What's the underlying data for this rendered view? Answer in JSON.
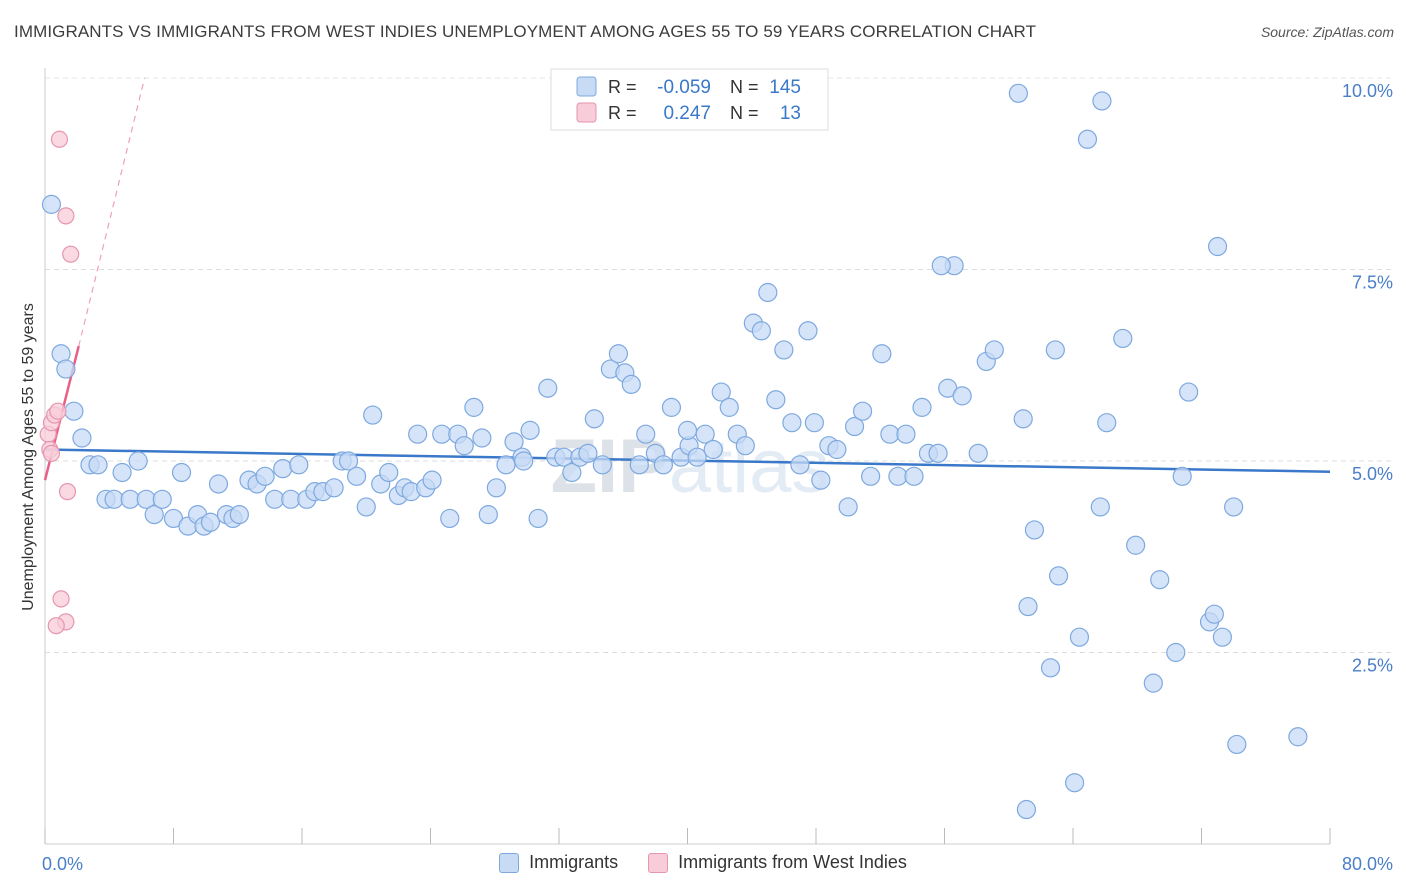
{
  "title": "IMMIGRANTS VS IMMIGRANTS FROM WEST INDIES UNEMPLOYMENT AMONG AGES 55 TO 59 YEARS CORRELATION CHART",
  "source": "Source: ZipAtlas.com",
  "watermark": "ZIPatlas",
  "colors": {
    "blue": "#3a78c9",
    "blue_fill": "#c7dbf5",
    "blue_stroke": "#7ea9df",
    "pink": "#e86088",
    "pink_fill": "#f8ccd9",
    "pink_stroke": "#e596ae",
    "axis_text": "#4a7fc8",
    "grid": "#dddddd"
  },
  "legend": {
    "blue": {
      "r_label": "R =",
      "r_value": "-0.059",
      "n_label": "N =",
      "n_value": "145"
    },
    "pink": {
      "r_label": "R =",
      "r_value": "0.247",
      "n_label": "N =",
      "n_value": "13"
    }
  },
  "bottom_legend": {
    "blue": "Immigrants",
    "pink": "Immigrants from West Indies"
  },
  "chart_data": {
    "type": "scatter",
    "title": "IMMIGRANTS VS IMMIGRANTS FROM WEST INDIES UNEMPLOYMENT AMONG AGES 55 TO 59 YEARS CORRELATION CHART",
    "xlabel": "",
    "ylabel": "Unemployment Among Ages 55 to 59 years",
    "xlim": [
      0,
      80
    ],
    "ylim": [
      0,
      10
    ],
    "x_tick_labels": [
      {
        "value": 0,
        "label": "0.0%"
      },
      {
        "value": 80,
        "label": "80.0%"
      }
    ],
    "y_tick_labels": [
      {
        "value": 2.5,
        "label": "2.5%"
      },
      {
        "value": 5.0,
        "label": "5.0%"
      },
      {
        "value": 7.5,
        "label": "7.5%"
      },
      {
        "value": 10.0,
        "label": "10.0%"
      }
    ],
    "grid": true,
    "legend_position": "top-center",
    "series": [
      {
        "name": "Immigrants",
        "color": "#3a78c9",
        "trend": {
          "x": [
            0,
            80
          ],
          "y": [
            5.15,
            4.86
          ]
        },
        "points": [
          [
            0.4,
            8.35
          ],
          [
            1.0,
            6.4
          ],
          [
            1.3,
            6.2
          ],
          [
            1.8,
            5.65
          ],
          [
            2.3,
            5.3
          ],
          [
            2.8,
            4.95
          ],
          [
            3.3,
            4.95
          ],
          [
            3.8,
            4.5
          ],
          [
            4.3,
            4.5
          ],
          [
            4.8,
            4.85
          ],
          [
            5.3,
            4.5
          ],
          [
            5.8,
            5.0
          ],
          [
            6.3,
            4.5
          ],
          [
            6.8,
            4.3
          ],
          [
            7.3,
            4.5
          ],
          [
            8.0,
            4.25
          ],
          [
            8.5,
            4.85
          ],
          [
            8.9,
            4.15
          ],
          [
            9.5,
            4.3
          ],
          [
            9.9,
            4.15
          ],
          [
            10.3,
            4.2
          ],
          [
            10.8,
            4.7
          ],
          [
            11.3,
            4.3
          ],
          [
            11.7,
            4.25
          ],
          [
            12.1,
            4.3
          ],
          [
            12.7,
            4.75
          ],
          [
            13.2,
            4.7
          ],
          [
            13.7,
            4.8
          ],
          [
            14.3,
            4.5
          ],
          [
            14.8,
            4.9
          ],
          [
            15.3,
            4.5
          ],
          [
            15.8,
            4.95
          ],
          [
            16.3,
            4.5
          ],
          [
            16.8,
            4.6
          ],
          [
            17.3,
            4.6
          ],
          [
            18.0,
            4.65
          ],
          [
            18.5,
            5.0
          ],
          [
            18.9,
            5.0
          ],
          [
            19.4,
            4.8
          ],
          [
            20.0,
            4.4
          ],
          [
            20.4,
            5.6
          ],
          [
            20.9,
            4.7
          ],
          [
            21.4,
            4.85
          ],
          [
            22.0,
            4.55
          ],
          [
            22.4,
            4.65
          ],
          [
            22.8,
            4.6
          ],
          [
            23.2,
            5.35
          ],
          [
            23.7,
            4.65
          ],
          [
            24.1,
            4.75
          ],
          [
            24.7,
            5.35
          ],
          [
            25.2,
            4.25
          ],
          [
            25.7,
            5.35
          ],
          [
            26.1,
            5.2
          ],
          [
            26.7,
            5.7
          ],
          [
            27.2,
            5.3
          ],
          [
            27.6,
            4.3
          ],
          [
            28.1,
            4.65
          ],
          [
            28.7,
            4.95
          ],
          [
            29.2,
            5.25
          ],
          [
            29.7,
            5.05
          ],
          [
            30.2,
            5.4
          ],
          [
            30.7,
            4.25
          ],
          [
            31.3,
            5.95
          ],
          [
            31.8,
            5.05
          ],
          [
            32.3,
            5.05
          ],
          [
            32.8,
            4.85
          ],
          [
            33.3,
            5.05
          ],
          [
            33.8,
            5.1
          ],
          [
            34.2,
            5.55
          ],
          [
            34.7,
            4.95
          ],
          [
            35.2,
            6.2
          ],
          [
            35.7,
            6.4
          ],
          [
            36.1,
            6.15
          ],
          [
            36.5,
            6.0
          ],
          [
            37.0,
            4.95
          ],
          [
            37.4,
            5.35
          ],
          [
            38.0,
            5.1
          ],
          [
            38.5,
            4.95
          ],
          [
            39.0,
            5.7
          ],
          [
            39.6,
            5.05
          ],
          [
            40.1,
            5.2
          ],
          [
            40.6,
            5.05
          ],
          [
            41.1,
            5.35
          ],
          [
            41.6,
            5.15
          ],
          [
            42.1,
            5.9
          ],
          [
            42.6,
            5.7
          ],
          [
            43.1,
            5.35
          ],
          [
            43.6,
            5.2
          ],
          [
            44.1,
            6.8
          ],
          [
            44.6,
            6.7
          ],
          [
            45.0,
            7.2
          ],
          [
            45.5,
            5.8
          ],
          [
            46.0,
            6.45
          ],
          [
            46.5,
            5.5
          ],
          [
            47.0,
            4.95
          ],
          [
            47.5,
            6.7
          ],
          [
            47.9,
            5.5
          ],
          [
            48.3,
            4.75
          ],
          [
            48.8,
            5.2
          ],
          [
            49.3,
            5.15
          ],
          [
            50.0,
            4.4
          ],
          [
            50.4,
            5.45
          ],
          [
            50.9,
            5.65
          ],
          [
            51.4,
            4.8
          ],
          [
            52.1,
            6.4
          ],
          [
            52.6,
            5.35
          ],
          [
            53.1,
            4.8
          ],
          [
            53.6,
            5.35
          ],
          [
            54.1,
            4.8
          ],
          [
            54.6,
            5.7
          ],
          [
            55.0,
            5.1
          ],
          [
            55.6,
            5.1
          ],
          [
            56.2,
            5.95
          ],
          [
            56.6,
            7.55
          ],
          [
            57.1,
            5.85
          ],
          [
            58.1,
            5.1
          ],
          [
            58.6,
            6.3
          ],
          [
            59.1,
            6.45
          ],
          [
            60.6,
            9.8
          ],
          [
            60.9,
            5.55
          ],
          [
            61.1,
            0.45
          ],
          [
            61.2,
            3.1
          ],
          [
            61.6,
            4.1
          ],
          [
            62.6,
            2.3
          ],
          [
            62.9,
            6.45
          ],
          [
            63.1,
            3.5
          ],
          [
            64.4,
            2.7
          ],
          [
            64.1,
            0.8
          ],
          [
            64.9,
            9.2
          ],
          [
            65.8,
            9.7
          ],
          [
            65.7,
            4.4
          ],
          [
            66.1,
            5.5
          ],
          [
            67.1,
            6.6
          ],
          [
            67.9,
            3.9
          ],
          [
            69.0,
            2.1
          ],
          [
            69.4,
            3.45
          ],
          [
            70.4,
            2.5
          ],
          [
            70.8,
            4.8
          ],
          [
            71.2,
            5.9
          ],
          [
            72.5,
            2.9
          ],
          [
            72.8,
            3.0
          ],
          [
            73.0,
            7.8
          ],
          [
            73.3,
            2.7
          ],
          [
            74.0,
            4.4
          ],
          [
            74.2,
            1.3
          ],
          [
            78.0,
            1.4
          ],
          [
            55.8,
            7.55
          ],
          [
            40.0,
            5.4
          ],
          [
            29.8,
            5.0
          ]
        ]
      },
      {
        "name": "Immigrants from West Indies",
        "color": "#e86088",
        "trend": {
          "x": [
            0,
            2.1
          ],
          "y": [
            4.75,
            6.5
          ],
          "dashed_extension": {
            "x": [
              2.1,
              6.2
            ],
            "y": [
              6.5,
              10.0
            ]
          }
        },
        "points": [
          [
            0.2,
            5.35
          ],
          [
            0.3,
            5.15
          ],
          [
            0.4,
            5.5
          ],
          [
            0.6,
            5.6
          ],
          [
            0.8,
            5.65
          ],
          [
            0.9,
            9.2
          ],
          [
            1.0,
            3.2
          ],
          [
            1.3,
            2.9
          ],
          [
            1.3,
            8.2
          ],
          [
            1.6,
            7.7
          ],
          [
            1.4,
            4.6
          ],
          [
            0.7,
            2.85
          ],
          [
            0.4,
            5.1
          ]
        ]
      }
    ]
  }
}
